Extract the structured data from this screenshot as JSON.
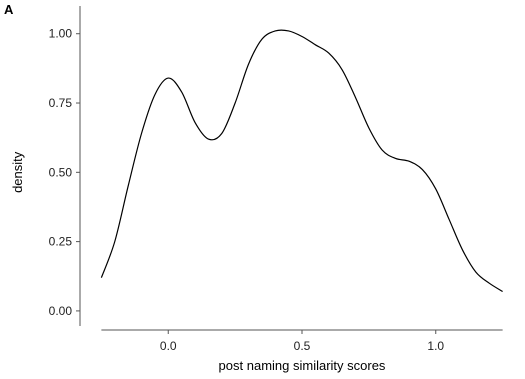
{
  "chart_data": {
    "type": "line",
    "panel_label": "A",
    "xlabel": "post naming similarity scores",
    "ylabel": "density",
    "xlim": [
      -0.3,
      1.3
    ],
    "ylim": [
      -0.04,
      1.1
    ],
    "x_ticks": [
      {
        "value": 0.0,
        "label": "0.0"
      },
      {
        "value": 0.5,
        "label": "0.5"
      },
      {
        "value": 1.0,
        "label": "1.0"
      }
    ],
    "y_ticks": [
      {
        "value": 0.0,
        "label": "0.00"
      },
      {
        "value": 0.25,
        "label": "0.25"
      },
      {
        "value": 0.5,
        "label": "0.50"
      },
      {
        "value": 0.75,
        "label": "0.75"
      },
      {
        "value": 1.0,
        "label": "1.00"
      }
    ],
    "grid": false,
    "series": [
      {
        "color": "#000000",
        "x": [
          -0.25,
          -0.2,
          -0.15,
          -0.1,
          -0.05,
          0.0,
          0.05,
          0.1,
          0.15,
          0.2,
          0.25,
          0.3,
          0.35,
          0.4,
          0.45,
          0.5,
          0.55,
          0.6,
          0.65,
          0.7,
          0.75,
          0.8,
          0.85,
          0.9,
          0.95,
          1.0,
          1.05,
          1.1,
          1.15,
          1.2,
          1.25
        ],
        "y": [
          0.12,
          0.25,
          0.45,
          0.64,
          0.78,
          0.84,
          0.79,
          0.68,
          0.62,
          0.64,
          0.75,
          0.89,
          0.98,
          1.01,
          1.01,
          0.99,
          0.96,
          0.93,
          0.87,
          0.77,
          0.66,
          0.58,
          0.55,
          0.54,
          0.51,
          0.44,
          0.33,
          0.22,
          0.14,
          0.1,
          0.07
        ]
      }
    ]
  }
}
